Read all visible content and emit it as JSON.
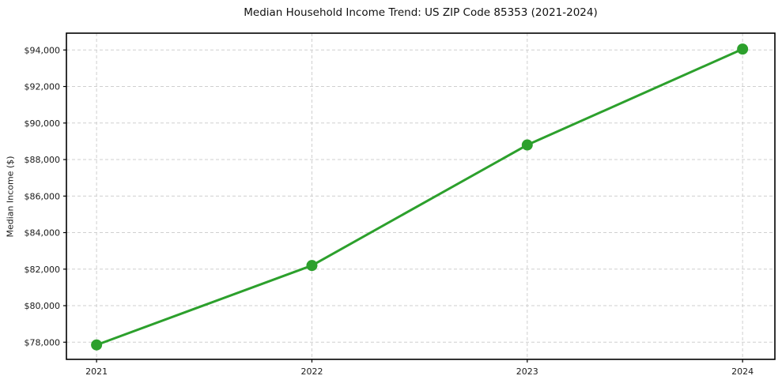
{
  "chart_data": {
    "type": "line",
    "title": "Median Household Income Trend: US ZIP Code 85353 (2021-2024)",
    "xlabel": "",
    "ylabel": "Median Income ($)",
    "x": [
      2021,
      2022,
      2023,
      2024
    ],
    "series": [
      {
        "name": "Median Household Income",
        "values": [
          77850,
          82200,
          88800,
          94050
        ]
      }
    ],
    "x_tick_labels": [
      "2021",
      "2022",
      "2023",
      "2024"
    ],
    "y_ticks": [
      78000,
      80000,
      82000,
      84000,
      86000,
      88000,
      90000,
      92000,
      94000
    ],
    "y_tick_labels": [
      "$78,000",
      "$80,000",
      "$82,000",
      "$84,000",
      "$86,000",
      "$88,000",
      "$90,000",
      "$92,000",
      "$94,000"
    ],
    "xlim": [
      2020.86,
      2024.15
    ],
    "ylim": [
      77060,
      94920
    ],
    "grid": "on",
    "grid_style": "dashed",
    "legend": "none",
    "line_color": "#2ca02c",
    "marker": "circle",
    "marker_color": "#2ca02c",
    "background_color": "#ffffff",
    "grid_color": "#cfcfcf",
    "spine_color": "#000000",
    "text_color": "#1a1a1a"
  }
}
